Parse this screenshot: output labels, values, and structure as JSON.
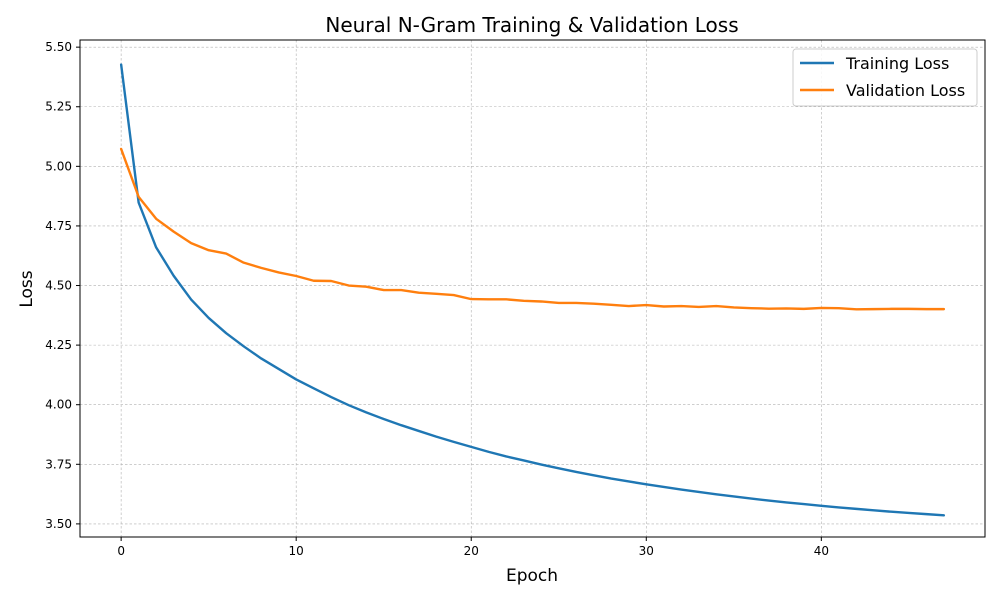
{
  "chart_data": {
    "type": "line",
    "title": "Neural N-Gram Training & Validation Loss",
    "xlabel": "Epoch",
    "ylabel": "Loss",
    "xlim": [
      -2.35,
      49.35
    ],
    "ylim": [
      3.445,
      5.53
    ],
    "xticks": [
      0,
      10,
      20,
      30,
      40
    ],
    "xtick_labels": [
      "0",
      "10",
      "20",
      "30",
      "40"
    ],
    "yticks": [
      3.5,
      3.75,
      4.0,
      4.25,
      4.5,
      4.75,
      5.0,
      5.25,
      5.5
    ],
    "ytick_labels": [
      "3.50",
      "3.75",
      "4.00",
      "4.25",
      "4.50",
      "4.75",
      "5.00",
      "5.25",
      "5.50"
    ],
    "grid": true,
    "legend_position": "top-right",
    "x": [
      0,
      1,
      2,
      3,
      4,
      5,
      6,
      7,
      8,
      9,
      10,
      11,
      12,
      13,
      14,
      15,
      16,
      17,
      18,
      19,
      20,
      21,
      22,
      23,
      24,
      25,
      26,
      27,
      28,
      29,
      30,
      31,
      32,
      33,
      34,
      35,
      36,
      37,
      38,
      39,
      40,
      41,
      42,
      43,
      44,
      45,
      46,
      47
    ],
    "series": [
      {
        "name": "Training Loss",
        "color": "#1f77b4",
        "values": [
          5.427,
          4.848,
          4.66,
          4.541,
          4.441,
          4.364,
          4.3,
          4.245,
          4.194,
          4.15,
          4.106,
          4.069,
          4.032,
          3.998,
          3.968,
          3.94,
          3.914,
          3.89,
          3.866,
          3.844,
          3.823,
          3.802,
          3.783,
          3.766,
          3.749,
          3.733,
          3.718,
          3.704,
          3.69,
          3.678,
          3.666,
          3.655,
          3.644,
          3.634,
          3.624,
          3.615,
          3.606,
          3.598,
          3.59,
          3.583,
          3.576,
          3.569,
          3.563,
          3.557,
          3.551,
          3.546,
          3.541,
          3.536
        ]
      },
      {
        "name": "Validation Loss",
        "color": "#ff7f0e",
        "values": [
          5.073,
          4.872,
          4.78,
          4.726,
          4.678,
          4.648,
          4.634,
          4.596,
          4.574,
          4.555,
          4.54,
          4.52,
          4.519,
          4.5,
          4.495,
          4.481,
          4.481,
          4.47,
          4.465,
          4.46,
          4.443,
          4.442,
          4.442,
          4.436,
          4.433,
          4.427,
          4.427,
          4.424,
          4.419,
          4.414,
          4.418,
          4.412,
          4.414,
          4.41,
          4.414,
          4.408,
          4.405,
          4.403,
          4.404,
          4.402,
          4.406,
          4.405,
          4.4,
          4.401,
          4.402,
          4.402,
          4.401,
          4.401
        ]
      }
    ]
  }
}
